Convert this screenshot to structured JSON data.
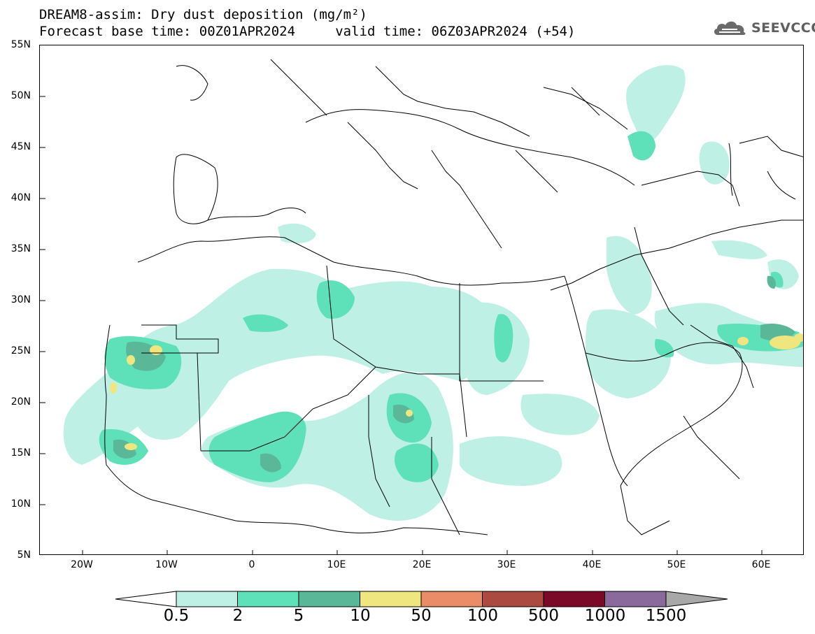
{
  "title": {
    "line1": "DREAM8-assim: Dry dust deposition (mg/m²)",
    "line2": "Forecast base time: 00Z01APR2024     valid time: 06Z03APR2024 (+54)"
  },
  "logo": {
    "text": "SEEVCCC",
    "icon": "cloud-logo-icon",
    "color": "#5f5f5f"
  },
  "axes": {
    "lat_labels": [
      "55N",
      "50N",
      "45N",
      "40N",
      "35N",
      "30N",
      "25N",
      "20N",
      "15N",
      "10N",
      "5N"
    ],
    "lon_labels": [
      "20W",
      "10W",
      "0",
      "10E",
      "20E",
      "30E",
      "40E",
      "50E",
      "60E"
    ],
    "lon_range": [
      -25,
      65
    ],
    "lat_range": [
      5,
      55
    ]
  },
  "legend": {
    "labels": [
      "0.5",
      "2",
      "5",
      "10",
      "50",
      "100",
      "500",
      "1000",
      "1500"
    ],
    "colors": [
      "#bff0e6",
      "#5ee0b8",
      "#5ab898",
      "#f0e680",
      "#ea8c68",
      "#aa4a40",
      "#7a0a28",
      "#8a6a9c"
    ],
    "arrow_colors": {
      "low": "#ffffff",
      "high": "#a8a8a8"
    }
  }
}
